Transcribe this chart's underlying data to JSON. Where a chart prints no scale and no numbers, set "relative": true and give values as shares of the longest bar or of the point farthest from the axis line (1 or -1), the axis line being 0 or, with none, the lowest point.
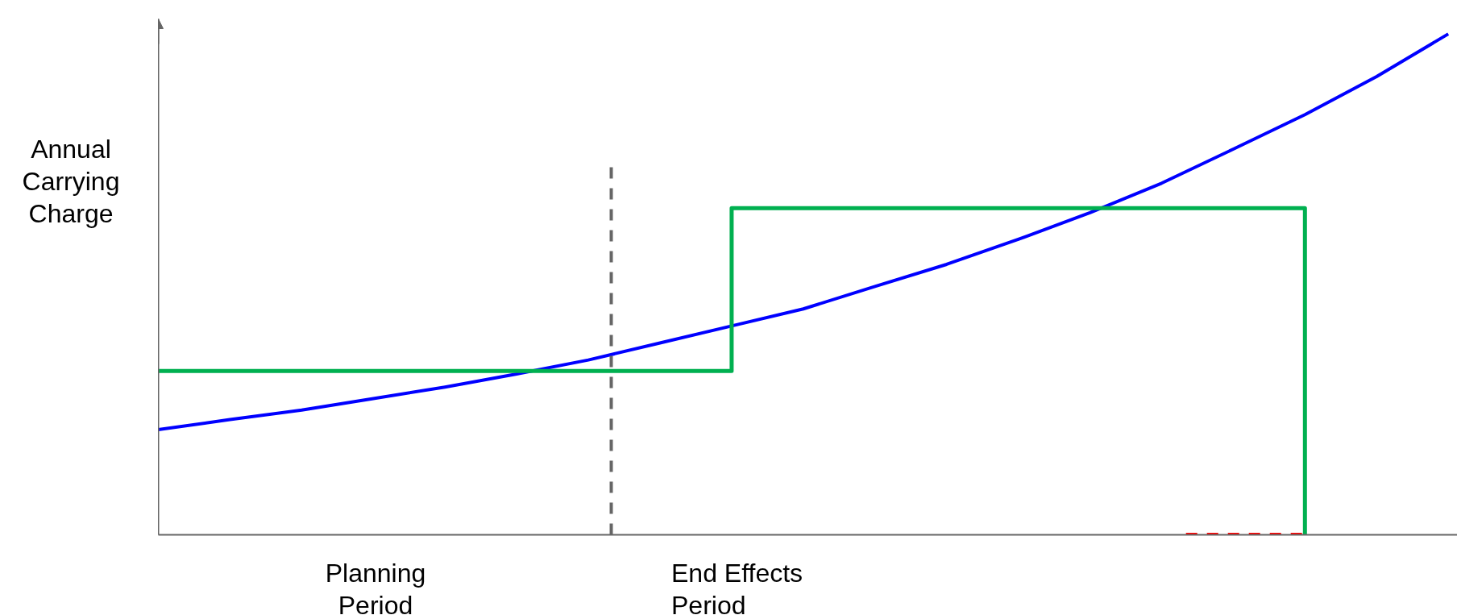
{
  "chart_data": {
    "type": "line",
    "relative": true,
    "ylabel": "Annual Carrying Charge",
    "categories": [
      null,
      null,
      null,
      null,
      null,
      null,
      null,
      null,
      null,
      null,
      null,
      null,
      null,
      null,
      null,
      null,
      null,
      null,
      null
    ],
    "series": [
      {
        "color": "#0000ff",
        "line_style": "solid",
        "values": [
          0.21,
          0.23,
          0.249,
          0.272,
          0.295,
          0.321,
          0.349,
          0.383,
          0.417,
          0.451,
          0.496,
          0.54,
          0.59,
          0.643,
          0.702,
          0.77,
          0.839,
          0.915,
          1.0
        ]
      },
      {
        "type": "step",
        "color": "#00b050",
        "line_style": "solid",
        "values": [
          0.327,
          0.327,
          0.327,
          0.327,
          0.327,
          0.327,
          0.327,
          0.327,
          0.652,
          0.652,
          0.652,
          0.652,
          0.652,
          0.652,
          0.652,
          0.652,
          0,
          null,
          null
        ]
      }
    ],
    "annotations": [
      "Planning Period",
      "End Effects Period"
    ]
  }
}
